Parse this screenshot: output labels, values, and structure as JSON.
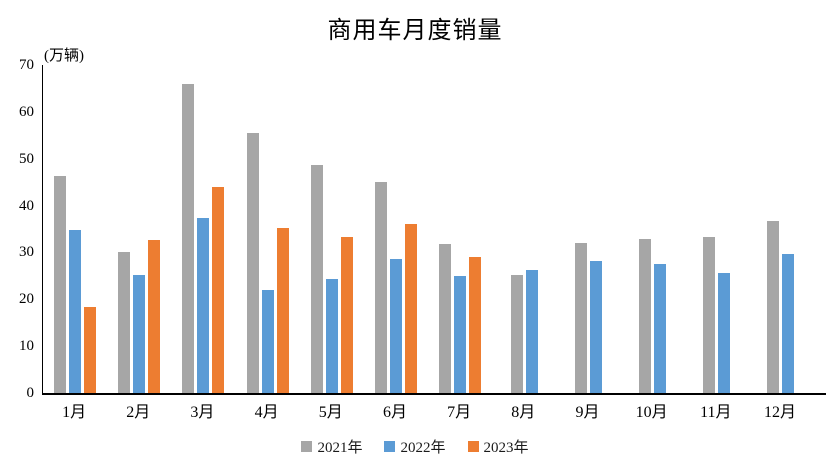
{
  "header": {
    "title": "商用车月度销量"
  },
  "axes": {
    "unit_label": "(万辆)"
  },
  "chart_data": {
    "type": "bar",
    "title": "商用车月度销量",
    "ylabel": "(万辆)",
    "xlabel": "",
    "ylim": [
      0,
      70
    ],
    "ytick_step": 10,
    "yticks": [
      0,
      10,
      20,
      30,
      40,
      50,
      60,
      70
    ],
    "grid": false,
    "legend_position": "bottom",
    "categories": [
      "1月",
      "2月",
      "3月",
      "4月",
      "5月",
      "6月",
      "7月",
      "8月",
      "9月",
      "10月",
      "11月",
      "12月"
    ],
    "series": [
      {
        "name": "2021年",
        "color": "#A6A6A6",
        "values": [
          46.4,
          30.2,
          65.9,
          55.5,
          48.7,
          45.1,
          31.8,
          25.2,
          32.1,
          32.9,
          33.3,
          36.7
        ]
      },
      {
        "name": "2022年",
        "color": "#5B9BD5",
        "values": [
          34.8,
          25.2,
          37.3,
          21.9,
          24.3,
          28.5,
          24.9,
          26.2,
          28.2,
          27.6,
          25.7,
          29.6
        ]
      },
      {
        "name": "2023年",
        "color": "#ED7D31",
        "values": [
          18.3,
          32.7,
          43.9,
          35.3,
          33.3,
          36.1,
          29.1,
          null,
          null,
          null,
          null,
          null
        ]
      }
    ]
  }
}
